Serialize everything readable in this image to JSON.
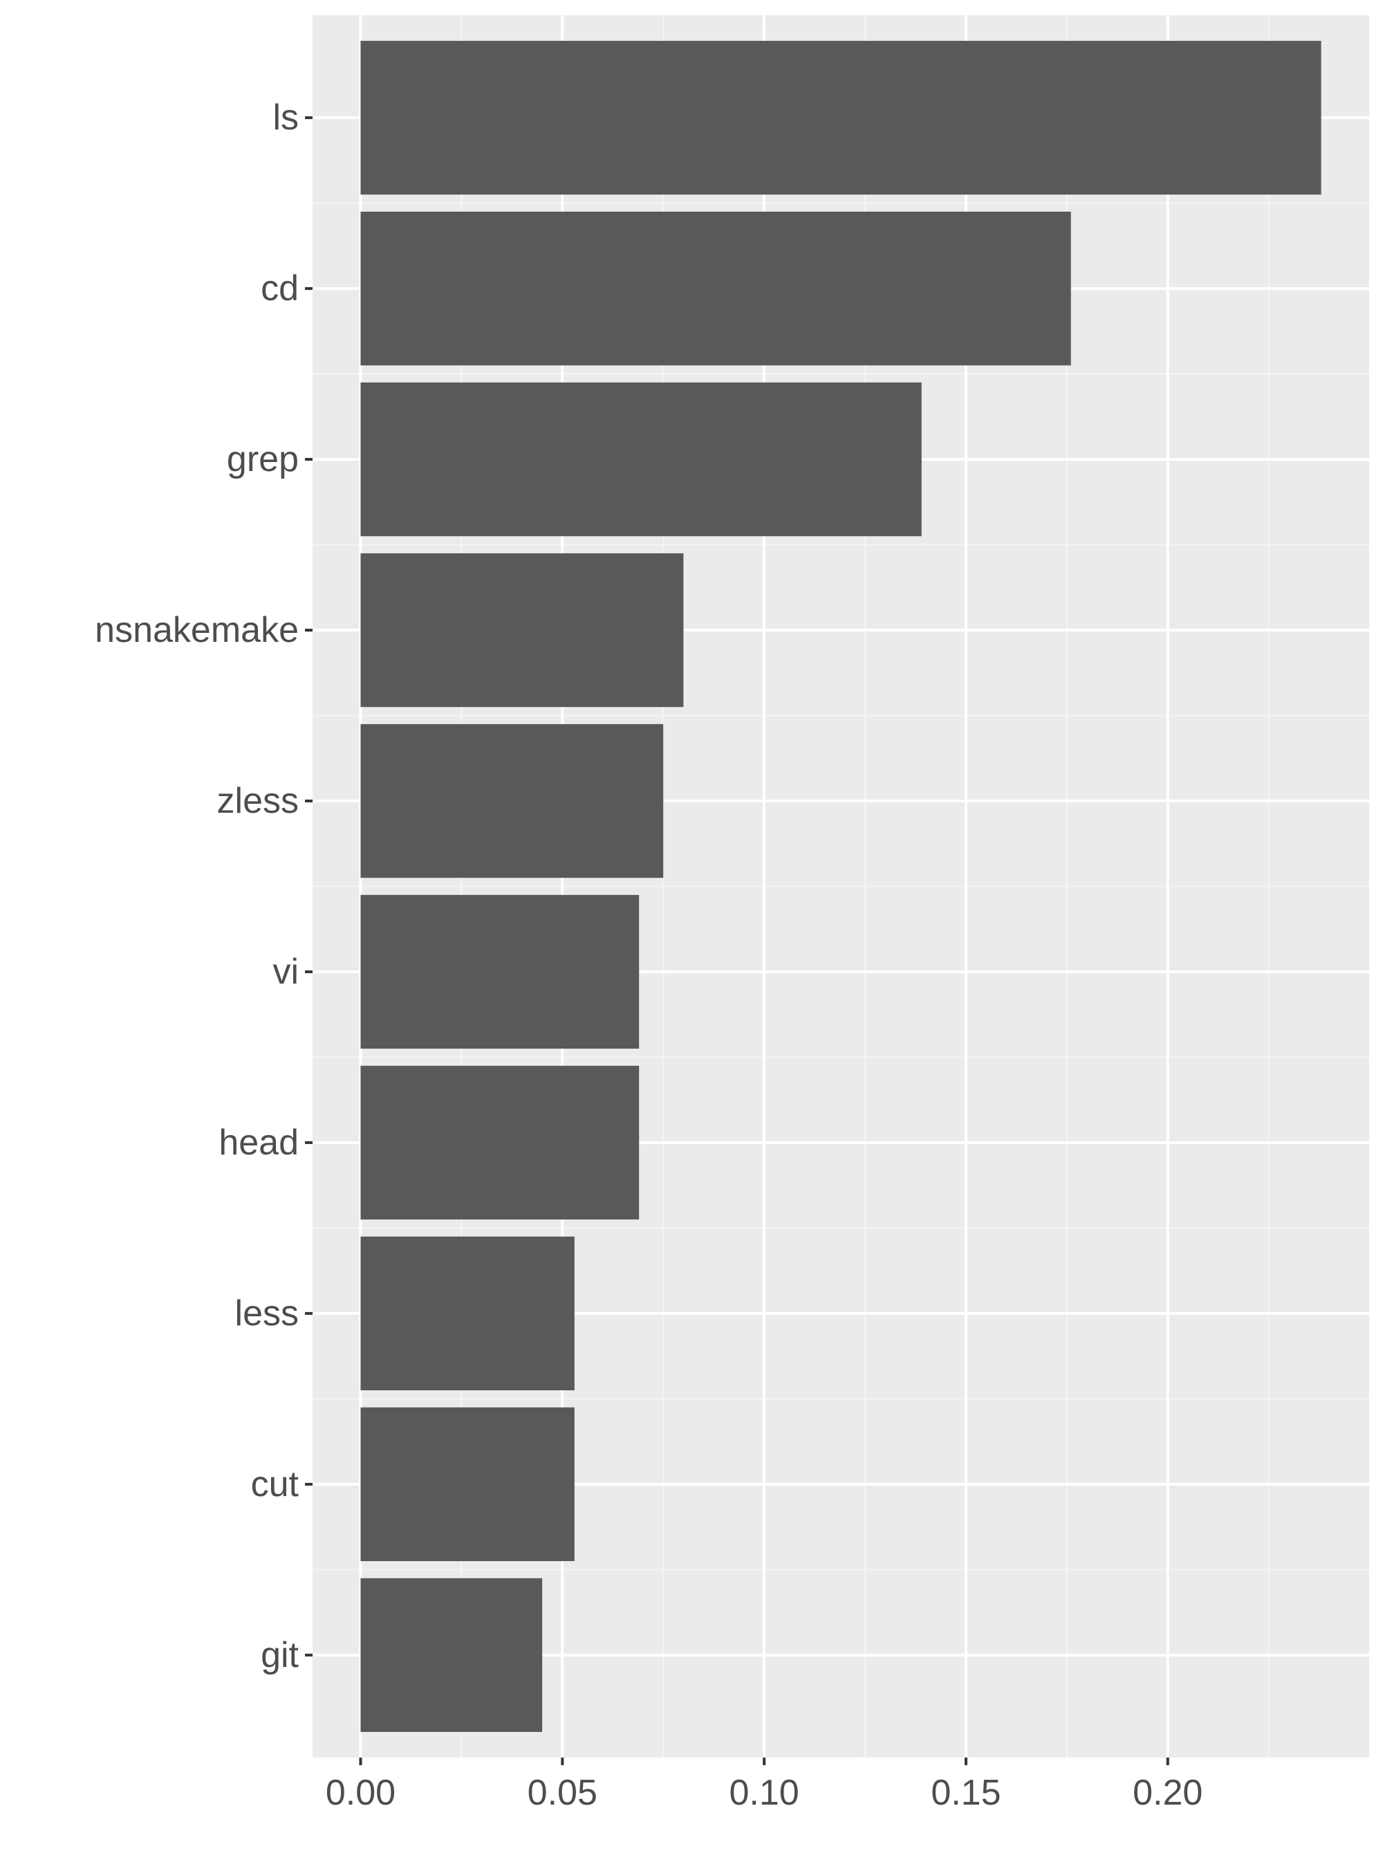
{
  "chart_data": {
    "type": "bar",
    "orientation": "horizontal",
    "title": "",
    "xlabel": "",
    "ylabel": "",
    "categories": [
      "ls",
      "cd",
      "grep",
      "nsnakemake",
      "zless",
      "vi",
      "head",
      "less",
      "cut",
      "git"
    ],
    "values": [
      0.238,
      0.176,
      0.139,
      0.08,
      0.075,
      0.069,
      0.069,
      0.053,
      0.053,
      0.045
    ],
    "xlim": [
      -0.0119,
      0.2499
    ],
    "x_ticks": [
      0.0,
      0.05,
      0.1,
      0.15,
      0.2
    ],
    "x_tick_labels": [
      "0.00",
      "0.05",
      "0.10",
      "0.15",
      "0.20"
    ],
    "grid": true,
    "legend": "none",
    "colors": {
      "panel_background": "#ebebeb",
      "grid_major": "#ffffff",
      "grid_minor": "#f5f5f5",
      "bar_fill": "#595959",
      "tick_label": "#4d4d4d",
      "tick_mark": "#333333"
    }
  }
}
